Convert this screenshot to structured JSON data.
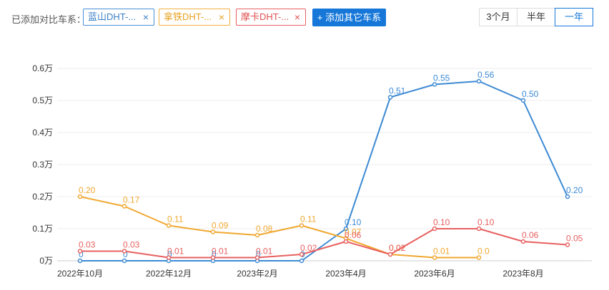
{
  "toolbar": {
    "compare_label": "已添加对比车系：",
    "tags": [
      {
        "label": "蓝山DHT-...",
        "color": "#3a7fc8"
      },
      {
        "label": "拿铁DHT-...",
        "color": "#e8a020"
      },
      {
        "label": "摩卡DHT-...",
        "color": "#e05050"
      }
    ],
    "close_glyph": "×",
    "add_button": "+ 添加其它车系",
    "ranges": [
      "3个月",
      "半年",
      "一年"
    ],
    "active_range": "一年"
  },
  "chart_data": {
    "type": "line",
    "title": "",
    "xlabel": "",
    "ylabel": "",
    "x": [
      "2022-10",
      "2022-11",
      "2022-12",
      "2023-01",
      "2023-02",
      "2023-03",
      "2023-04",
      "2023-05",
      "2023-06",
      "2023-07",
      "2023-08",
      "2023-09"
    ],
    "x_tick_labels": [
      "2022年10月",
      "2022年12月",
      "2023年2月",
      "2023年4月",
      "2023年6月",
      "2023年8月"
    ],
    "x_tick_positions": [
      "2022-10",
      "2022-12",
      "2023-02",
      "2023-04",
      "2023-06",
      "2023-08"
    ],
    "y_tick_labels": [
      "0万",
      "0.1万",
      "0.2万",
      "0.3万",
      "0.4万",
      "0.5万",
      "0.6万"
    ],
    "ylim": [
      0,
      0.6
    ],
    "y_unit": "万",
    "grid": true,
    "series": [
      {
        "color": "#3d8ad4",
        "values": [
          0,
          0,
          0,
          0,
          0,
          0,
          0.1,
          0.51,
          0.55,
          0.56,
          0.5,
          0.2
        ],
        "labels": [
          "0",
          "0",
          "0",
          "0",
          "0",
          "0",
          "0.10",
          "0.51",
          "0.55",
          "0.56",
          "0.50",
          "0.20"
        ]
      },
      {
        "color": "#f0a830",
        "values": [
          0.2,
          0.17,
          0.11,
          0.09,
          0.08,
          0.11,
          0.07,
          0.02,
          0.01,
          0.01,
          null,
          null
        ],
        "labels": [
          "0.20",
          "0.17",
          "0.11",
          "0.09",
          "0.08",
          "0.11",
          "0.07",
          "0.02",
          "0.01",
          "0.0",
          "",
          ""
        ]
      },
      {
        "color": "#e86060",
        "values": [
          0.03,
          0.03,
          0.01,
          0.01,
          0.01,
          0.02,
          0.06,
          0.02,
          0.1,
          0.1,
          0.06,
          0.05
        ],
        "labels": [
          "0.03",
          "0.03",
          "0.01",
          "0.01",
          "0.01",
          "0.02",
          "0.06",
          "0.02",
          "0.10",
          "0.10",
          "0.06",
          "0.05"
        ]
      }
    ]
  }
}
